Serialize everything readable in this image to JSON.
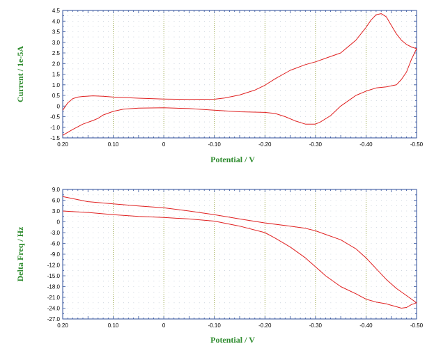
{
  "chart_data": [
    {
      "type": "line",
      "title": "",
      "xlabel": "Potential / V",
      "ylabel": "Current / 1e-5A",
      "xlim": [
        0.2,
        -0.5
      ],
      "ylim": [
        -1.5,
        4.5
      ],
      "x_ticks": [
        0.2,
        0.1,
        0,
        -0.1,
        -0.2,
        -0.3,
        -0.4,
        -0.5
      ],
      "x_tick_labels": [
        "0.20",
        "0.10",
        "0",
        "-0.10",
        "-0.20",
        "-0.30",
        "-0.40",
        "-0.50"
      ],
      "y_ticks": [
        4.5,
        4.0,
        3.5,
        3.0,
        2.5,
        2.0,
        1.5,
        1.0,
        0.5,
        0,
        -0.5,
        -1.0,
        -1.5
      ],
      "y_tick_labels": [
        "4.5",
        "4.0",
        "3.5",
        "3.0",
        "2.5",
        "2.0",
        "1.5",
        "1.0",
        "0.5",
        "0",
        "-0.5",
        "-1.0",
        "-1.5"
      ],
      "vertical_grid": "dotted",
      "horizontal_grid": "dots",
      "color": "#e02020",
      "series": [
        {
          "x": [
            0.2,
            0.19,
            0.18,
            0.17,
            0.16,
            0.14,
            0.12,
            0.1,
            0.05,
            0.0,
            -0.05,
            -0.1,
            -0.12,
            -0.15,
            -0.18,
            -0.2,
            -0.22,
            -0.25,
            -0.28,
            -0.3,
            -0.32,
            -0.35,
            -0.38,
            -0.4,
            -0.41,
            -0.42,
            -0.43,
            -0.44,
            -0.45,
            -0.46,
            -0.47,
            -0.48,
            -0.49,
            -0.5
          ],
          "y": [
            -0.2,
            0.15,
            0.35,
            0.42,
            0.45,
            0.48,
            0.46,
            0.42,
            0.37,
            0.33,
            0.31,
            0.32,
            0.38,
            0.52,
            0.75,
            0.98,
            1.28,
            1.68,
            1.95,
            2.08,
            2.25,
            2.5,
            3.1,
            3.7,
            4.05,
            4.3,
            4.35,
            4.2,
            3.8,
            3.4,
            3.1,
            2.9,
            2.78,
            2.7
          ]
        },
        {
          "x": [
            -0.5,
            -0.49,
            -0.48,
            -0.47,
            -0.46,
            -0.45,
            -0.44,
            -0.42,
            -0.4,
            -0.38,
            -0.35,
            -0.33,
            -0.31,
            -0.3,
            -0.28,
            -0.26,
            -0.24,
            -0.22,
            -0.2,
            -0.15,
            -0.1,
            -0.05,
            0.0,
            0.05,
            0.08,
            0.1,
            0.12,
            0.13,
            0.14,
            0.16,
            0.18,
            0.2
          ],
          "y": [
            2.7,
            2.2,
            1.6,
            1.25,
            1.0,
            0.95,
            0.9,
            0.85,
            0.7,
            0.5,
            0.0,
            -0.45,
            -0.75,
            -0.85,
            -0.85,
            -0.7,
            -0.5,
            -0.35,
            -0.3,
            -0.27,
            -0.2,
            -0.12,
            -0.08,
            -0.1,
            -0.15,
            -0.25,
            -0.42,
            -0.58,
            -0.68,
            -0.85,
            -1.1,
            -1.38
          ]
        }
      ]
    },
    {
      "type": "line",
      "title": "",
      "xlabel": "Potential / V",
      "ylabel": "Delta Freq / Hz",
      "xlim": [
        0.2,
        -0.5
      ],
      "ylim": [
        -27.0,
        9.0
      ],
      "x_ticks": [
        0.2,
        0.1,
        0,
        -0.1,
        -0.2,
        -0.3,
        -0.4,
        -0.5
      ],
      "x_tick_labels": [
        "0.20",
        "0.10",
        "0",
        "-0.10",
        "-0.20",
        "-0.30",
        "-0.40",
        "-0.50"
      ],
      "y_ticks": [
        9.0,
        6.0,
        3.0,
        0,
        -3.0,
        -6.0,
        -9.0,
        -12.0,
        -15.0,
        -18.0,
        -21.0,
        -24.0,
        -27.0
      ],
      "y_tick_labels": [
        "9.0",
        "6.0",
        "3.0",
        "0",
        "-3.0",
        "-6.0",
        "-9.0",
        "-12.0",
        "-15.0",
        "-18.0",
        "-21.0",
        "-24.0",
        "-27.0"
      ],
      "vertical_grid": "dotted",
      "horizontal_grid": "dots",
      "color": "#e02020",
      "series": [
        {
          "x": [
            0.2,
            0.15,
            0.1,
            0.05,
            0.0,
            -0.05,
            -0.1,
            -0.15,
            -0.2,
            -0.25,
            -0.28,
            -0.3,
            -0.32,
            -0.35,
            -0.38,
            -0.4,
            -0.42,
            -0.44,
            -0.46,
            -0.48,
            -0.5
          ],
          "y": [
            7.0,
            5.6,
            5.0,
            4.4,
            3.9,
            3.0,
            2.0,
            0.8,
            -0.3,
            -1.2,
            -1.8,
            -2.5,
            -3.5,
            -5.0,
            -7.5,
            -10.0,
            -13.0,
            -16.0,
            -18.5,
            -20.5,
            -22.5
          ]
        },
        {
          "x": [
            -0.5,
            -0.49,
            -0.48,
            -0.47,
            -0.46,
            -0.45,
            -0.44,
            -0.42,
            -0.4,
            -0.38,
            -0.35,
            -0.32,
            -0.3,
            -0.28,
            -0.25,
            -0.22,
            -0.2,
            -0.15,
            -0.1,
            -0.05,
            0.0,
            0.05,
            0.1,
            0.15,
            0.2
          ],
          "y": [
            -22.5,
            -23.0,
            -23.8,
            -24.0,
            -23.6,
            -23.2,
            -22.8,
            -22.3,
            -21.5,
            -20.0,
            -18.0,
            -15.0,
            -12.5,
            -10.0,
            -7.0,
            -4.5,
            -3.0,
            -1.2,
            0.2,
            0.8,
            1.2,
            1.5,
            2.0,
            2.6,
            3.0
          ]
        }
      ]
    }
  ]
}
